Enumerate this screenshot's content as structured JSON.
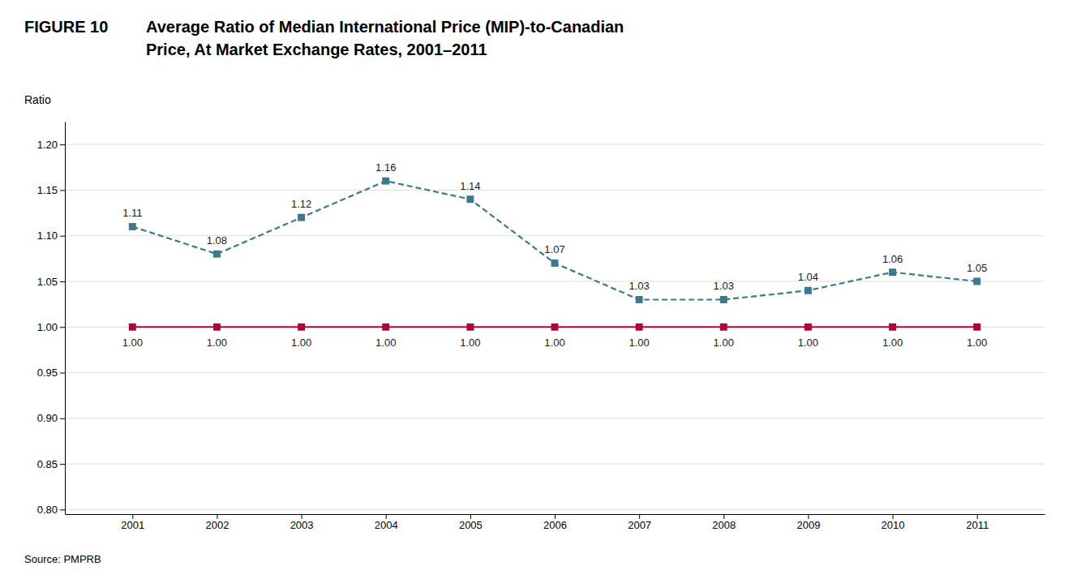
{
  "chart_data": {
    "type": "line",
    "title": [
      "Average Ratio of Median International Price (MIP)-to-Canadian",
      "Price, At Market Exchange Rates, 2001–2011"
    ],
    "annotations": [
      "FIGURE 10",
      "Source: PMPRB"
    ],
    "y_label": "Ratio",
    "x": [
      2001,
      2002,
      2003,
      2004,
      2005,
      2006,
      2007,
      2008,
      2009,
      2010,
      2011
    ],
    "series": [
      {
        "color": "#b5003a",
        "line_style": "solid",
        "marker": "square",
        "values": [
          1.0,
          1.0,
          1.0,
          1.0,
          1.0,
          1.0,
          1.0,
          1.0,
          1.0,
          1.0,
          1.0
        ],
        "value_labels": [
          "1.00",
          "1.00",
          "1.00",
          "1.00",
          "1.00",
          "1.00",
          "1.00",
          "1.00",
          "1.00",
          "1.00",
          "1.00"
        ]
      },
      {
        "color": "#3a7a8c",
        "line_style": "dashed",
        "marker": "square",
        "values": [
          1.11,
          1.08,
          1.12,
          1.16,
          1.14,
          1.07,
          1.03,
          1.03,
          1.04,
          1.06,
          1.05
        ],
        "value_labels": [
          "1.11",
          "1.08",
          "1.12",
          "1.16",
          "1.14",
          "1.07",
          "1.03",
          "1.03",
          "1.04",
          "1.06",
          "1.05"
        ]
      }
    ],
    "xlim": [
      2000.2,
      2011.8
    ],
    "xticks": [
      2001,
      2002,
      2003,
      2004,
      2005,
      2006,
      2007,
      2008,
      2009,
      2010,
      2011
    ],
    "ylim": [
      0.795,
      1.225
    ],
    "yticks": [
      {
        "value": 0.8,
        "label": "0.80"
      },
      0.85,
      {
        "value": 0.9,
        "label": "0.90"
      },
      0.95,
      {
        "value": 1.0,
        "label": "1.00"
      },
      1.05,
      {
        "value": 1.1,
        "label": "1.10"
      },
      1.15,
      {
        "value": 1.2,
        "label": "1.20"
      }
    ],
    "grid": true,
    "data_labels": true
  }
}
